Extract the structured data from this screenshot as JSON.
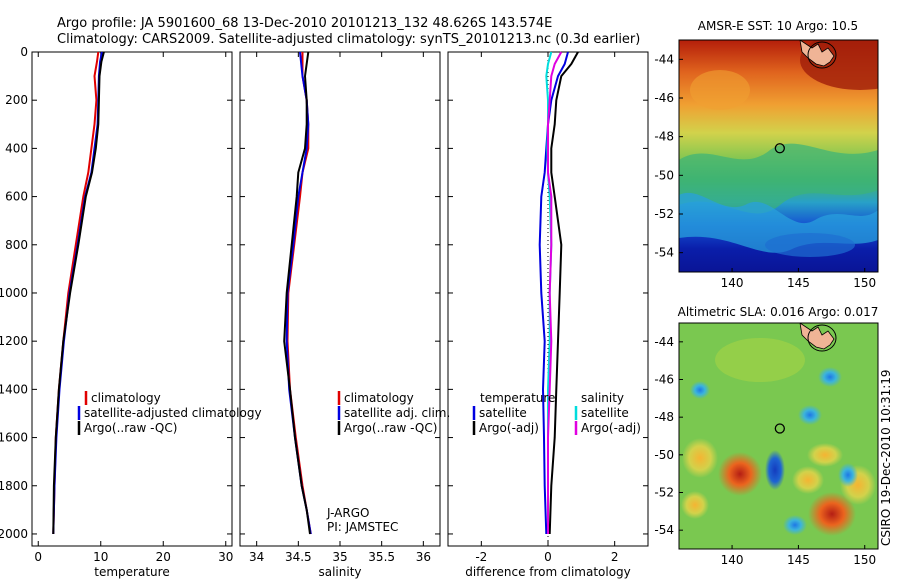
{
  "header": {
    "line1": "Argo profile: JA 5901600_68 13-Dec-2010 20101213_132 48.626S 143.574E",
    "line2": "Climatology: CARS2009. Satellite-adjusted climatology: synTS_20101213.nc (0.3d earlier)"
  },
  "credit": "CSIRO 19-Dec-2010 10:31:19",
  "chart_data": [
    {
      "id": "temperature",
      "type": "line",
      "xlabel": "temperature",
      "ylabel": "",
      "xlim": [
        -1,
        31
      ],
      "ylim": [
        2050,
        0
      ],
      "xticks": [
        "0",
        "10",
        "20",
        "30"
      ],
      "yticks": [
        "0",
        "200",
        "400",
        "600",
        "800",
        "1000",
        "1200",
        "1400",
        "1600",
        "1800",
        "2000"
      ],
      "legend": [
        "climatology",
        "satellite-adjusted climatology",
        "Argo(..raw -QC)"
      ],
      "series": [
        {
          "name": "climatology",
          "color": "#e00000",
          "x": [
            9.6,
            9.4,
            9.0,
            9.3,
            9.0,
            8.5,
            8.0,
            7.2,
            6.0,
            4.8,
            4.0,
            3.3,
            2.8,
            2.6,
            2.5,
            2.4
          ],
          "y": [
            0,
            40,
            100,
            200,
            300,
            400,
            500,
            600,
            800,
            1000,
            1200,
            1400,
            1600,
            1800,
            1900,
            2000
          ]
        },
        {
          "name": "satellite-adjusted climatology",
          "color": "#0000e0",
          "x": [
            10.2,
            9.9,
            9.7,
            9.6,
            9.5,
            9.0,
            8.5,
            7.5,
            6.3,
            5.0,
            4.1,
            3.4,
            2.9,
            2.6,
            2.5,
            2.4
          ],
          "y": [
            0,
            40,
            100,
            200,
            300,
            400,
            500,
            600,
            800,
            1000,
            1200,
            1400,
            1600,
            1800,
            1900,
            2000
          ]
        },
        {
          "name": "Argo(..raw -QC)",
          "color": "#000000",
          "x": [
            10.5,
            10.1,
            9.8,
            9.7,
            9.6,
            9.2,
            8.6,
            7.6,
            6.4,
            5.1,
            4.0,
            3.3,
            2.8,
            2.5,
            2.4
          ],
          "y": [
            0,
            40,
            100,
            200,
            300,
            400,
            500,
            600,
            800,
            1000,
            1200,
            1400,
            1600,
            1800,
            2000
          ]
        }
      ]
    },
    {
      "id": "salinity",
      "type": "line",
      "xlabel": "salinity",
      "xlim": [
        33.8,
        36.2
      ],
      "ylim": [
        2050,
        0
      ],
      "xticks": [
        "34",
        "34.5",
        "35",
        "35.5",
        "36"
      ],
      "legend": [
        "climatology",
        "satellite adj. clim.",
        "Argo(..raw -QC)"
      ],
      "annotations": [
        "J-ARGO",
        "PI: JAMSTEC"
      ],
      "series": [
        {
          "name": "climatology",
          "color": "#e00000",
          "x": [
            34.55,
            34.55,
            34.6,
            34.62,
            34.62,
            34.55,
            34.52,
            34.45,
            34.38,
            34.37,
            34.4,
            34.47,
            34.55,
            34.6,
            34.65
          ],
          "y": [
            0,
            100,
            200,
            300,
            400,
            500,
            600,
            800,
            1000,
            1200,
            1400,
            1600,
            1800,
            1900,
            2000
          ]
        },
        {
          "name": "satellite adj. clim.",
          "color": "#0000e0",
          "x": [
            34.52,
            34.55,
            34.6,
            34.62,
            34.6,
            34.55,
            34.5,
            34.44,
            34.37,
            34.36,
            34.39,
            34.46,
            34.54,
            34.6,
            34.65
          ],
          "y": [
            0,
            100,
            200,
            300,
            400,
            500,
            600,
            800,
            1000,
            1200,
            1400,
            1600,
            1800,
            1900,
            2000
          ]
        },
        {
          "name": "Argo(..raw -QC)",
          "color": "#000000",
          "x": [
            34.62,
            34.58,
            34.6,
            34.6,
            34.58,
            34.5,
            34.48,
            34.42,
            34.36,
            34.33,
            34.4,
            34.46,
            34.54,
            34.6,
            34.64
          ],
          "y": [
            0,
            100,
            200,
            300,
            400,
            500,
            600,
            800,
            1000,
            1200,
            1400,
            1600,
            1800,
            1900,
            2000
          ]
        }
      ]
    },
    {
      "id": "difference",
      "type": "line",
      "xlabel": "difference from climatology",
      "xlim": [
        -3,
        3
      ],
      "ylim": [
        2050,
        0
      ],
      "xticks": [
        "-2",
        "0",
        "2"
      ],
      "legend_titles": [
        "temperature",
        "salinity"
      ],
      "legend": [
        "satellite",
        "Argo(-adj)",
        "satellite",
        "Argo(-adj)"
      ],
      "series": [
        {
          "name": "temperature satellite",
          "color": "#0000e0",
          "x": [
            0.6,
            0.5,
            0.3,
            0.1,
            0.0,
            -0.05,
            -0.1,
            -0.2,
            -0.25,
            -0.2,
            -0.1,
            -0.15,
            -0.12,
            -0.1,
            -0.05
          ],
          "y": [
            0,
            50,
            100,
            200,
            300,
            400,
            500,
            600,
            800,
            1000,
            1200,
            1400,
            1600,
            1800,
            2000
          ]
        },
        {
          "name": "temperature Argo(-adj)",
          "color": "#000000",
          "x": [
            0.9,
            0.7,
            0.4,
            0.25,
            0.2,
            0.1,
            0.1,
            0.2,
            0.4,
            0.35,
            0.3,
            0.25,
            0.2,
            0.1,
            0.05
          ],
          "y": [
            0,
            50,
            100,
            200,
            300,
            400,
            500,
            600,
            800,
            1000,
            1200,
            1400,
            1600,
            1800,
            2000
          ]
        },
        {
          "name": "salinity satellite",
          "color": "#00dddd",
          "x": [
            0.1,
            0.0,
            -0.05,
            0.0,
            0.0,
            -0.02,
            0.0,
            0.05,
            0.1,
            0.05,
            0.05,
            0.0,
            0.0,
            0.0,
            0.0
          ],
          "y": [
            0,
            50,
            100,
            200,
            300,
            400,
            500,
            600,
            800,
            1000,
            1200,
            1400,
            1600,
            1800,
            2000
          ]
        },
        {
          "name": "salinity Argo(-adj)",
          "color": "#e000e0",
          "x": [
            0.4,
            0.2,
            0.1,
            0.05,
            0.0,
            0.0,
            0.0,
            0.1,
            0.1,
            0.05,
            0.1,
            0.05,
            0.0,
            0.0,
            0.0
          ],
          "y": [
            0,
            50,
            100,
            200,
            300,
            400,
            500,
            600,
            800,
            1000,
            1200,
            1400,
            1600,
            1800,
            2000
          ]
        }
      ]
    },
    {
      "id": "sst-map",
      "type": "heatmap",
      "title": "AMSR-E SST: 10 Argo: 10.5",
      "xlim": [
        136,
        151
      ],
      "ylim": [
        -55,
        -43
      ],
      "xticks": [
        "140",
        "145",
        "150"
      ],
      "yticks": [
        "-44",
        "-46",
        "-48",
        "-50",
        "-52",
        "-54"
      ],
      "marker": {
        "lon": 143.6,
        "lat": -48.6
      }
    },
    {
      "id": "sla-map",
      "type": "heatmap",
      "title": "Altimetric SLA: 0.016 Argo: 0.017",
      "xlim": [
        136,
        151
      ],
      "ylim": [
        -55,
        -43
      ],
      "xticks": [
        "140",
        "145",
        "150"
      ],
      "yticks": [
        "-44",
        "-46",
        "-48",
        "-50",
        "-52",
        "-54"
      ],
      "marker": {
        "lon": 143.6,
        "lat": -48.6
      }
    }
  ]
}
